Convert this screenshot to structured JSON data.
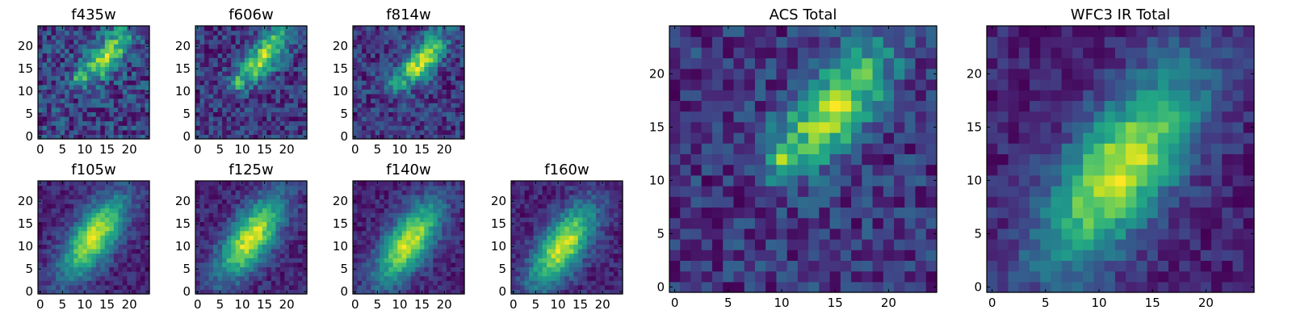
{
  "figure": {
    "description_colormap": "viridis"
  },
  "chart_data": [
    {
      "type": "heatmap",
      "title": "f435w",
      "xlim": [
        0,
        24
      ],
      "ylim": [
        0,
        24
      ],
      "xticks": [
        "0",
        "5",
        "10",
        "15",
        "20"
      ],
      "yticks": [
        "0",
        "5",
        "10",
        "15",
        "20"
      ],
      "peak": {
        "x": 16,
        "y": 19
      },
      "secondary_peak": {
        "x": 9,
        "y": 13
      },
      "elongation": "diagonal",
      "noise": "high"
    },
    {
      "type": "heatmap",
      "title": "f606w",
      "xlim": [
        0,
        24
      ],
      "ylim": [
        0,
        24
      ],
      "xticks": [
        "0",
        "5",
        "10",
        "15",
        "20"
      ],
      "yticks": [
        "0",
        "5",
        "10",
        "15",
        "20"
      ],
      "peak": {
        "x": 16,
        "y": 19
      },
      "secondary_peak": {
        "x": 9,
        "y": 12
      },
      "elongation": "diagonal",
      "noise": "medium"
    },
    {
      "type": "heatmap",
      "title": "f814w",
      "xlim": [
        0,
        24
      ],
      "ylim": [
        0,
        24
      ],
      "xticks": [
        "0",
        "5",
        "10",
        "15",
        "20"
      ],
      "yticks": [
        "0",
        "5",
        "10",
        "15",
        "20"
      ],
      "peak": {
        "x": 16,
        "y": 18
      },
      "secondary_peak": {
        "x": 9,
        "y": 12
      },
      "elongation": "diagonal",
      "noise": "medium"
    },
    {
      "type": "heatmap",
      "title": "f105w",
      "xlim": [
        0,
        24
      ],
      "ylim": [
        0,
        24
      ],
      "xticks": [
        "0",
        "5",
        "10",
        "15",
        "20"
      ],
      "yticks": [
        "0",
        "5",
        "10",
        "15",
        "20"
      ],
      "peak": {
        "x": 12,
        "y": 12
      },
      "elongation": "diagonal",
      "noise": "low"
    },
    {
      "type": "heatmap",
      "title": "f125w",
      "xlim": [
        0,
        24
      ],
      "ylim": [
        0,
        24
      ],
      "xticks": [
        "0",
        "5",
        "10",
        "15",
        "20"
      ],
      "yticks": [
        "0",
        "5",
        "10",
        "15",
        "20"
      ],
      "peak": {
        "x": 12,
        "y": 12
      },
      "elongation": "diagonal",
      "noise": "low"
    },
    {
      "type": "heatmap",
      "title": "f140w",
      "xlim": [
        0,
        24
      ],
      "ylim": [
        0,
        24
      ],
      "xticks": [
        "0",
        "5",
        "10",
        "15",
        "20"
      ],
      "yticks": [
        "0",
        "5",
        "10",
        "15",
        "20"
      ],
      "peak": {
        "x": 12,
        "y": 11
      },
      "elongation": "diagonal",
      "noise": "low"
    },
    {
      "type": "heatmap",
      "title": "f160w",
      "xlim": [
        0,
        24
      ],
      "ylim": [
        0,
        24
      ],
      "xticks": [
        "0",
        "5",
        "10",
        "15",
        "20"
      ],
      "yticks": [
        "0",
        "5",
        "10",
        "15",
        "20"
      ],
      "peak": {
        "x": 11,
        "y": 10
      },
      "elongation": "diagonal",
      "noise": "low"
    },
    {
      "type": "heatmap",
      "title": "ACS Total",
      "xlim": [
        0,
        24
      ],
      "ylim": [
        0,
        24
      ],
      "xticks": [
        "0",
        "5",
        "10",
        "15",
        "20"
      ],
      "yticks": [
        "0",
        "5",
        "10",
        "15",
        "20"
      ],
      "peak": {
        "x": 16,
        "y": 18
      },
      "secondary_peak": {
        "x": 10,
        "y": 12
      },
      "elongation": "diagonal",
      "noise": "medium"
    },
    {
      "type": "heatmap",
      "title": "WFC3 IR Total",
      "xlim": [
        0,
        24
      ],
      "ylim": [
        0,
        24
      ],
      "xticks": [
        "0",
        "5",
        "10",
        "15",
        "20"
      ],
      "yticks": [
        "0",
        "5",
        "10",
        "15",
        "20"
      ],
      "peak": {
        "x": 12,
        "y": 11
      },
      "elongation": "diagonal",
      "noise": "low"
    }
  ]
}
